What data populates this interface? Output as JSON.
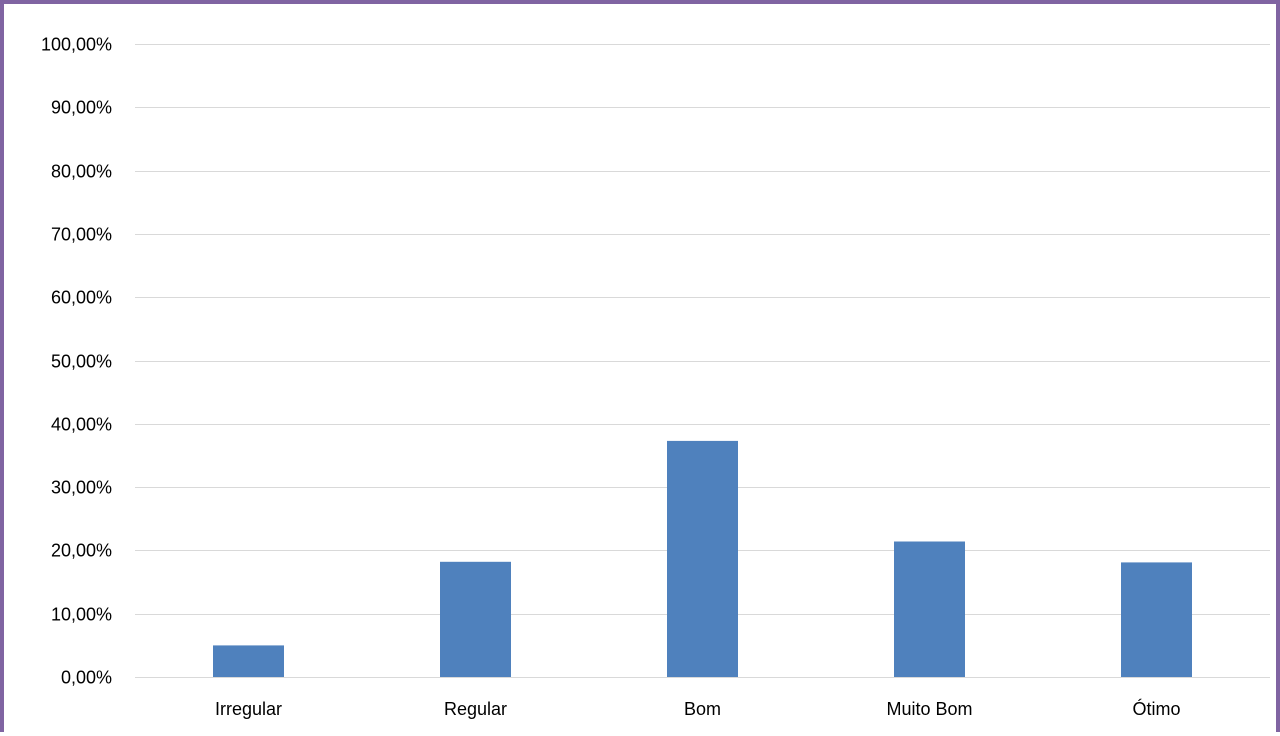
{
  "chart_data": {
    "type": "bar",
    "title": "",
    "xlabel": "",
    "ylabel": "",
    "categories": [
      "Irregular",
      "Regular",
      "Bom",
      "Muito Bom",
      "Ótimo"
    ],
    "values": [
      5.0,
      18.2,
      37.3,
      21.4,
      18.1
    ],
    "ylim": [
      0,
      100
    ],
    "yticks": [
      0,
      10,
      20,
      30,
      40,
      50,
      60,
      70,
      80,
      90,
      100
    ],
    "ytick_labels": [
      "0,00%",
      "10,00%",
      "20,00%",
      "30,00%",
      "40,00%",
      "50,00%",
      "60,00%",
      "70,00%",
      "80,00%",
      "90,00%",
      "100,00%"
    ],
    "grid": true,
    "legend": "none",
    "bar_color": "#4F81BD",
    "grid_color": "#D9D9D9",
    "frame_color": "#8064A2"
  }
}
